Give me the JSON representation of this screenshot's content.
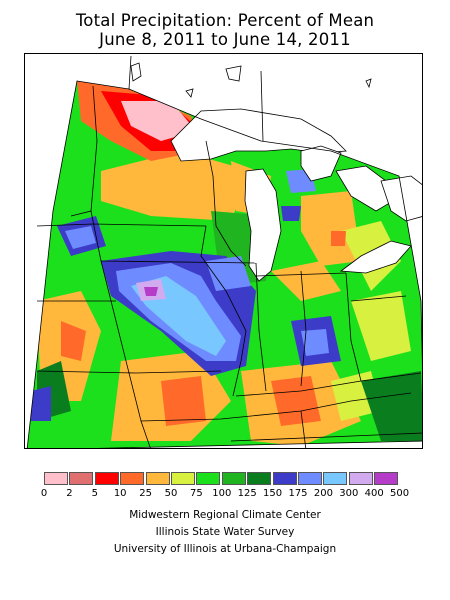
{
  "title": {
    "line1": "Total Precipitation: Percent of Mean",
    "line2": "June 8, 2011 to June 14, 2011"
  },
  "legend": {
    "ticks": [
      "0",
      "2",
      "5",
      "10",
      "25",
      "50",
      "75",
      "100",
      "125",
      "150",
      "175",
      "200",
      "300",
      "400",
      "500"
    ],
    "colors": [
      "#ffc0cb",
      "#e07070",
      "#ff0000",
      "#ff6a2a",
      "#ffb83c",
      "#d8f040",
      "#1ce01c",
      "#20b420",
      "#0a7d1e",
      "#3c3cc8",
      "#6e8cff",
      "#78c8ff",
      "#d2aaf0",
      "#b43cc8"
    ]
  },
  "credits": {
    "line1": "Midwestern Regional Climate Center",
    "line2": "Illinois State Water Survey",
    "line3": "University of Illinois at Urbana-Champaign"
  }
}
